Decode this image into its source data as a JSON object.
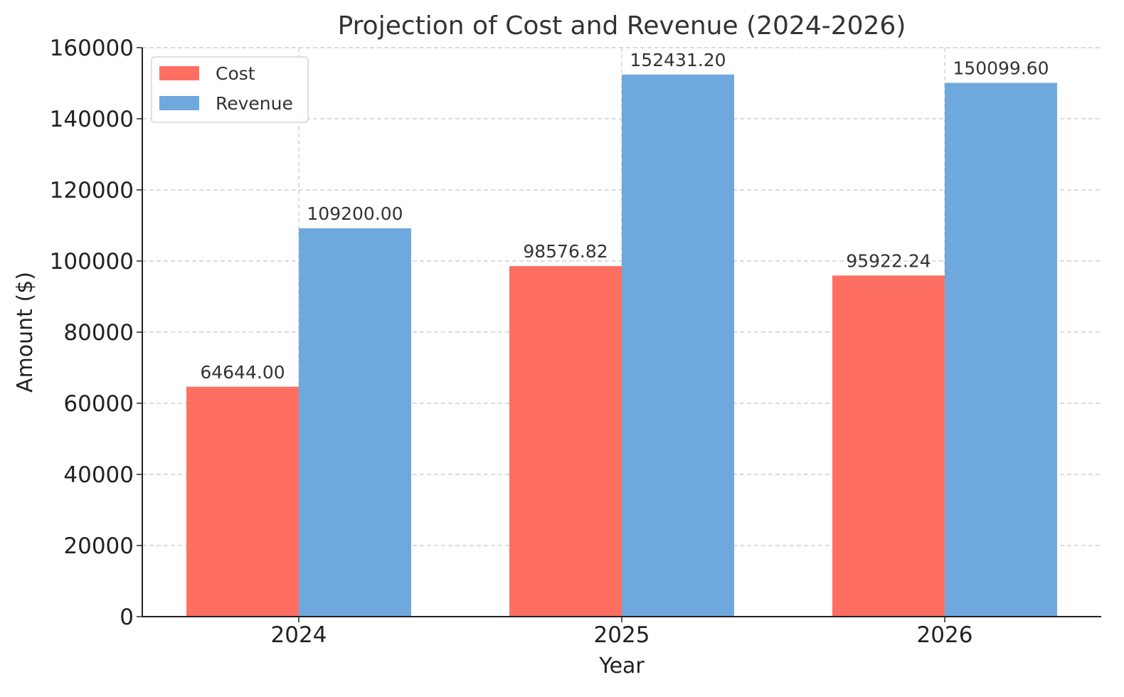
{
  "chart_data": {
    "type": "bar",
    "title": "Projection of Cost and Revenue (2024-2026)",
    "xlabel": "Year",
    "ylabel": "Amount ($)",
    "categories": [
      "2024",
      "2025",
      "2026"
    ],
    "series": [
      {
        "name": "Cost",
        "color": "#ff6f61",
        "values": [
          64644.0,
          98576.82,
          95922.24
        ],
        "labels": [
          "64644.00",
          "98576.82",
          "95922.24"
        ]
      },
      {
        "name": "Revenue",
        "color": "#6fa8dc",
        "values": [
          109200.0,
          152431.2,
          150099.6
        ],
        "labels": [
          "109200.00",
          "152431.20",
          "150099.60"
        ]
      }
    ],
    "ylim": [
      0,
      160000
    ],
    "yticks": [
      0,
      20000,
      40000,
      60000,
      80000,
      100000,
      120000,
      140000,
      160000
    ],
    "ytick_labels": [
      "0",
      "20000",
      "40000",
      "60000",
      "80000",
      "100000",
      "120000",
      "140000",
      "160000"
    ],
    "grid": true,
    "legend_position": "top-left"
  }
}
